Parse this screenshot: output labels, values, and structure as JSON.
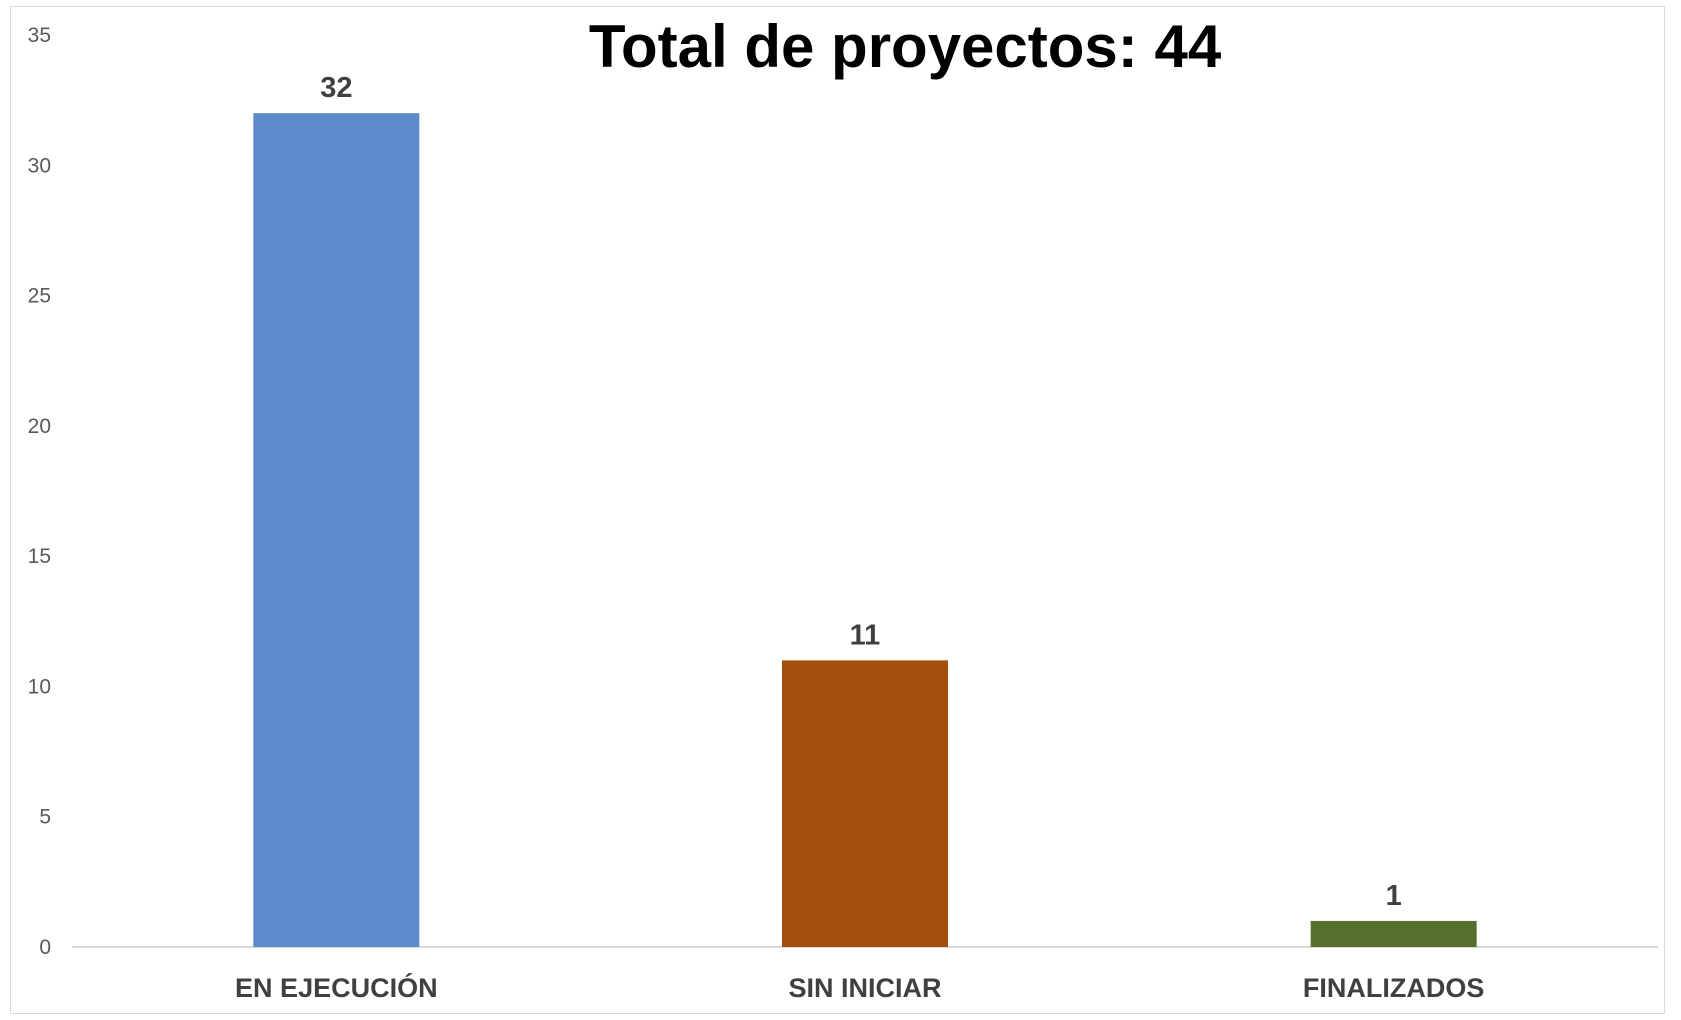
{
  "chart_data": {
    "type": "bar",
    "title": "Total de proyectos: 44",
    "categories": [
      "EN EJECUCIÓN",
      "SIN INICIAR",
      "FINALIZADOS"
    ],
    "values": [
      32,
      11,
      1
    ],
    "colors": [
      "#5b8bcb",
      "#a44f0c",
      "#56702d"
    ],
    "xlabel": "",
    "ylabel": "",
    "ylim": [
      0,
      35
    ],
    "yticks": [
      0,
      5,
      10,
      15,
      20,
      25,
      30,
      35
    ],
    "ytick_labels": [
      "0",
      "5",
      "10",
      "15",
      "20",
      "25",
      "30",
      "35"
    ],
    "data_labels": [
      "32",
      "11",
      "1"
    ],
    "grid": false,
    "legend": "none"
  }
}
